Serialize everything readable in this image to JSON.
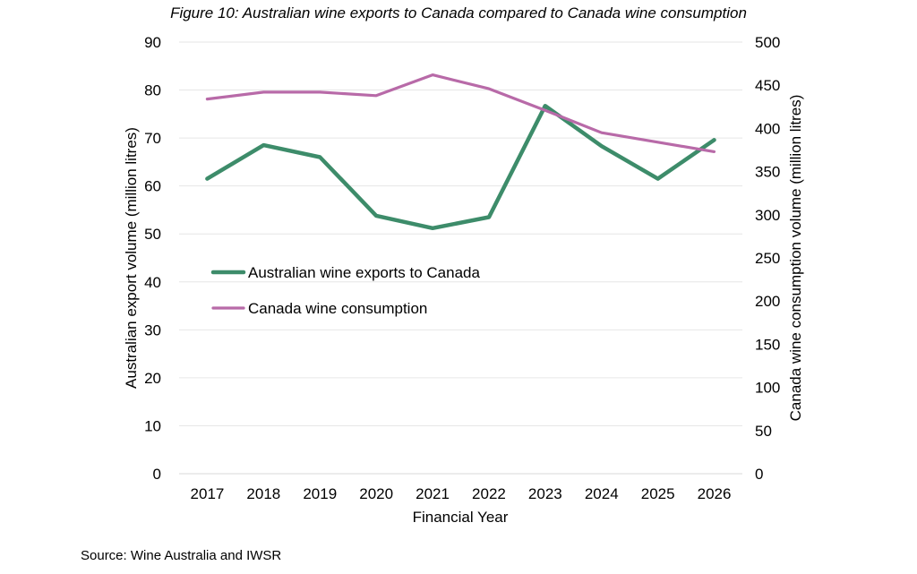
{
  "chart_data": {
    "type": "line",
    "title": "Figure 10: Australian wine exports to Canada compared to Canada wine consumption",
    "xlabel": "Financial Year",
    "ylabel_left": "Australian export volume (million litres)",
    "ylabel_right": "Canada wine consumption volume (million litres)",
    "categories": [
      "2017",
      "2018",
      "2019",
      "2020",
      "2021",
      "2022",
      "2023",
      "2024",
      "2025",
      "2026"
    ],
    "ylim_left": [
      0,
      90
    ],
    "yticks_left": [
      0,
      10,
      20,
      30,
      40,
      50,
      60,
      70,
      80,
      90
    ],
    "ylim_right": [
      0,
      500
    ],
    "yticks_right": [
      0,
      50,
      100,
      150,
      200,
      250,
      300,
      350,
      400,
      450,
      500
    ],
    "grid": true,
    "legend_position": "center-left",
    "series": [
      {
        "name": "Australian wine exports to Canada",
        "axis": "left",
        "color": "#3d8c6a",
        "values": [
          61.5,
          68.5,
          66.0,
          53.8,
          51.2,
          53.5,
          76.7,
          68.3,
          61.5,
          69.6
        ]
      },
      {
        "name": "Canada wine consumption",
        "axis": "right",
        "color": "#b86aa8",
        "values": [
          434,
          442,
          442,
          438,
          462,
          446,
          421,
          395,
          384,
          373
        ]
      }
    ]
  },
  "source": "Source: Wine Australia and IWSR"
}
